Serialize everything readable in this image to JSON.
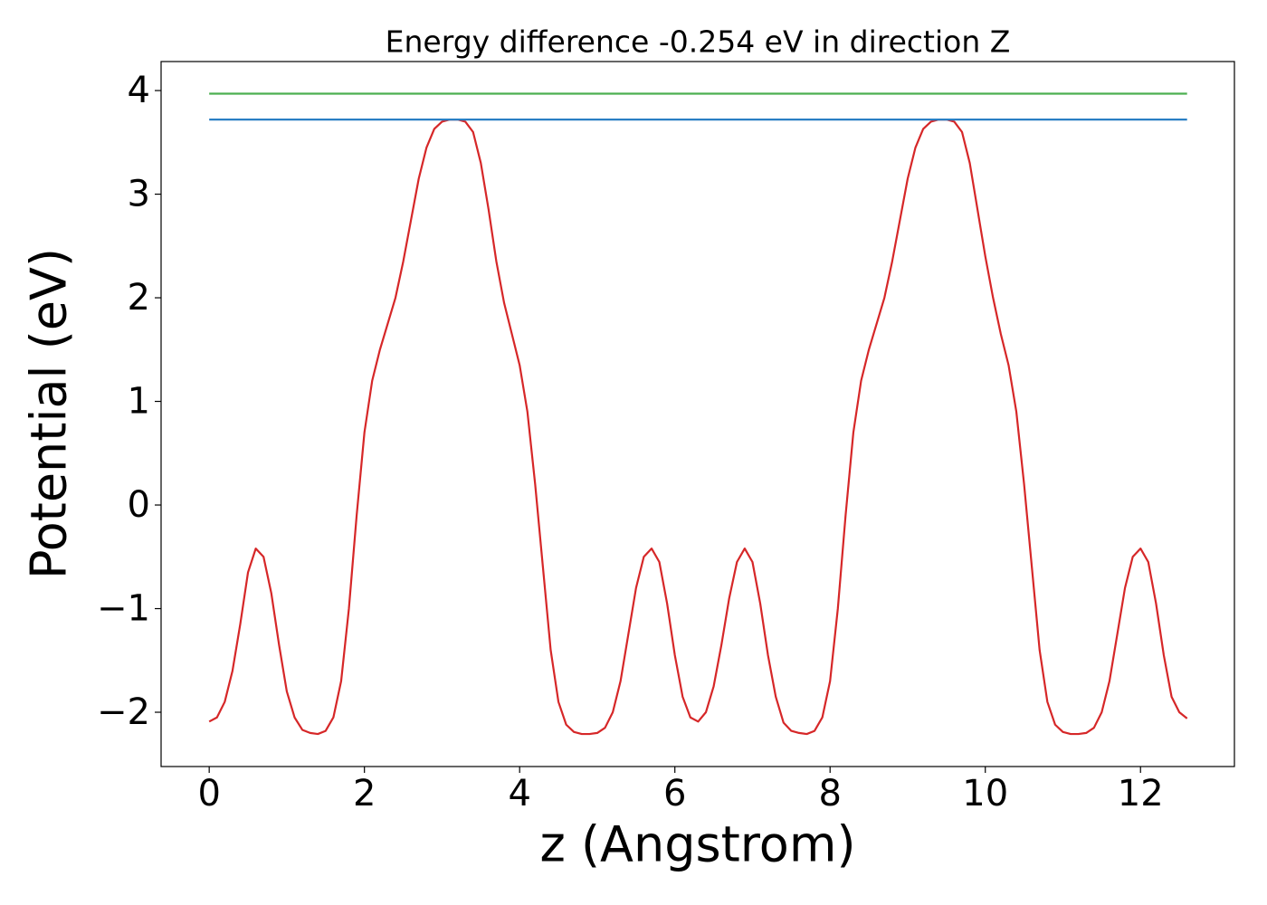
{
  "chart_data": {
    "type": "line",
    "title": "Energy difference -0.254 eV in direction Z",
    "xlabel": "z (Angstrom)",
    "ylabel": "Potential (eV)",
    "xlim": [
      -0.62,
      13.21
    ],
    "ylim": [
      -2.524,
      4.28
    ],
    "xticks": [
      0,
      2,
      4,
      6,
      8,
      10,
      12
    ],
    "yticks": [
      {
        "value": -2,
        "label": "−2"
      },
      {
        "value": -1,
        "label": "−1"
      },
      0,
      1,
      2,
      3,
      4
    ],
    "grid": false,
    "series": [
      {
        "color": "#d62728",
        "x": [
          0,
          0.1,
          0.2,
          0.3,
          0.4,
          0.5,
          0.6,
          0.7,
          0.8,
          0.9,
          1.0,
          1.1,
          1.2,
          1.3,
          1.4,
          1.5,
          1.6,
          1.7,
          1.8,
          1.9,
          2.0,
          2.1,
          2.2,
          2.3,
          2.4,
          2.5,
          2.6,
          2.7,
          2.8,
          2.9,
          3.0,
          3.1,
          3.2,
          3.3,
          3.4,
          3.5,
          3.6,
          3.7,
          3.8,
          3.9,
          4.0,
          4.1,
          4.2,
          4.3,
          4.4,
          4.5,
          4.6,
          4.7,
          4.8,
          4.9,
          5.0,
          5.1,
          5.2,
          5.3,
          5.4,
          5.5,
          5.6,
          5.7,
          5.8,
          5.9,
          6.0,
          6.1,
          6.2,
          6.3,
          6.4,
          6.5,
          6.6,
          6.7,
          6.8,
          6.9,
          7.0,
          7.1,
          7.2,
          7.3,
          7.4,
          7.5,
          7.6,
          7.7,
          7.8,
          7.9,
          8.0,
          8.1,
          8.2,
          8.3,
          8.4,
          8.5,
          8.6,
          8.7,
          8.8,
          8.9,
          9.0,
          9.1,
          9.2,
          9.3,
          9.4,
          9.5,
          9.6,
          9.7,
          9.8,
          9.9,
          10.0,
          10.1,
          10.2,
          10.3,
          10.4,
          10.5,
          10.6,
          10.7,
          10.8,
          10.9,
          11.0,
          11.1,
          11.2,
          11.3,
          11.4,
          11.5,
          11.6,
          11.7,
          11.8,
          11.9,
          12.0,
          12.1,
          12.2,
          12.3,
          12.4,
          12.5,
          12.6
        ],
        "values": [
          -2.09,
          -2.05,
          -1.9,
          -1.6,
          -1.15,
          -0.65,
          -0.42,
          -0.5,
          -0.85,
          -1.35,
          -1.8,
          -2.05,
          -2.17,
          -2.2,
          -2.21,
          -2.18,
          -2.05,
          -1.7,
          -1.0,
          -0.1,
          0.7,
          1.2,
          1.5,
          1.75,
          2.0,
          2.35,
          2.75,
          3.15,
          3.45,
          3.63,
          3.7,
          3.72,
          3.72,
          3.7,
          3.6,
          3.3,
          2.85,
          2.35,
          1.95,
          1.65,
          1.35,
          0.9,
          0.2,
          -0.6,
          -1.4,
          -1.9,
          -2.12,
          -2.19,
          -2.21,
          -2.21,
          -2.2,
          -2.15,
          -2.0,
          -1.7,
          -1.25,
          -0.8,
          -0.5,
          -0.42,
          -0.55,
          -0.95,
          -1.45,
          -1.85,
          -2.05,
          -2.09,
          -2.0,
          -1.75,
          -1.35,
          -0.9,
          -0.55,
          -0.42,
          -0.55,
          -0.95,
          -1.45,
          -1.85,
          -2.1,
          -2.18,
          -2.2,
          -2.21,
          -2.18,
          -2.05,
          -1.7,
          -1.0,
          -0.1,
          0.7,
          1.2,
          1.5,
          1.75,
          2.0,
          2.35,
          2.75,
          3.15,
          3.45,
          3.63,
          3.7,
          3.72,
          3.72,
          3.7,
          3.6,
          3.3,
          2.85,
          2.4,
          2.0,
          1.65,
          1.35,
          0.9,
          0.2,
          -0.6,
          -1.4,
          -1.9,
          -2.12,
          -2.19,
          -2.21,
          -2.21,
          -2.2,
          -2.15,
          -2.0,
          -1.7,
          -1.25,
          -0.8,
          -0.5,
          -0.42,
          -0.55,
          -0.95,
          -1.45,
          -1.85,
          -2.0,
          -2.06
        ]
      },
      {
        "color": "#2a7fc4",
        "x": [
          0,
          12.6
        ],
        "values": [
          3.72,
          3.72
        ]
      },
      {
        "color": "#4caf50",
        "x": [
          0,
          12.6
        ],
        "values": [
          3.97,
          3.97
        ]
      }
    ]
  }
}
